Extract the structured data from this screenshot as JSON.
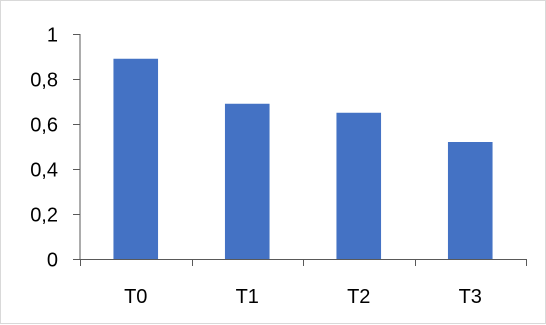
{
  "chart_data": {
    "type": "bar",
    "categories": [
      "T0",
      "T1",
      "T2",
      "T3"
    ],
    "values": [
      0.89,
      0.69,
      0.65,
      0.52
    ],
    "ylim": [
      0,
      1
    ],
    "yticks": [
      0,
      0.2,
      0.4,
      0.6,
      0.8,
      1
    ],
    "ytick_labels": [
      "0",
      "0,2",
      "0,4",
      "0,6",
      "0,8",
      "1"
    ],
    "title": "",
    "xlabel": "",
    "ylabel": "",
    "grid": false,
    "legend": "none",
    "bar_color": "#4472C4",
    "axis_color": "#595959"
  }
}
